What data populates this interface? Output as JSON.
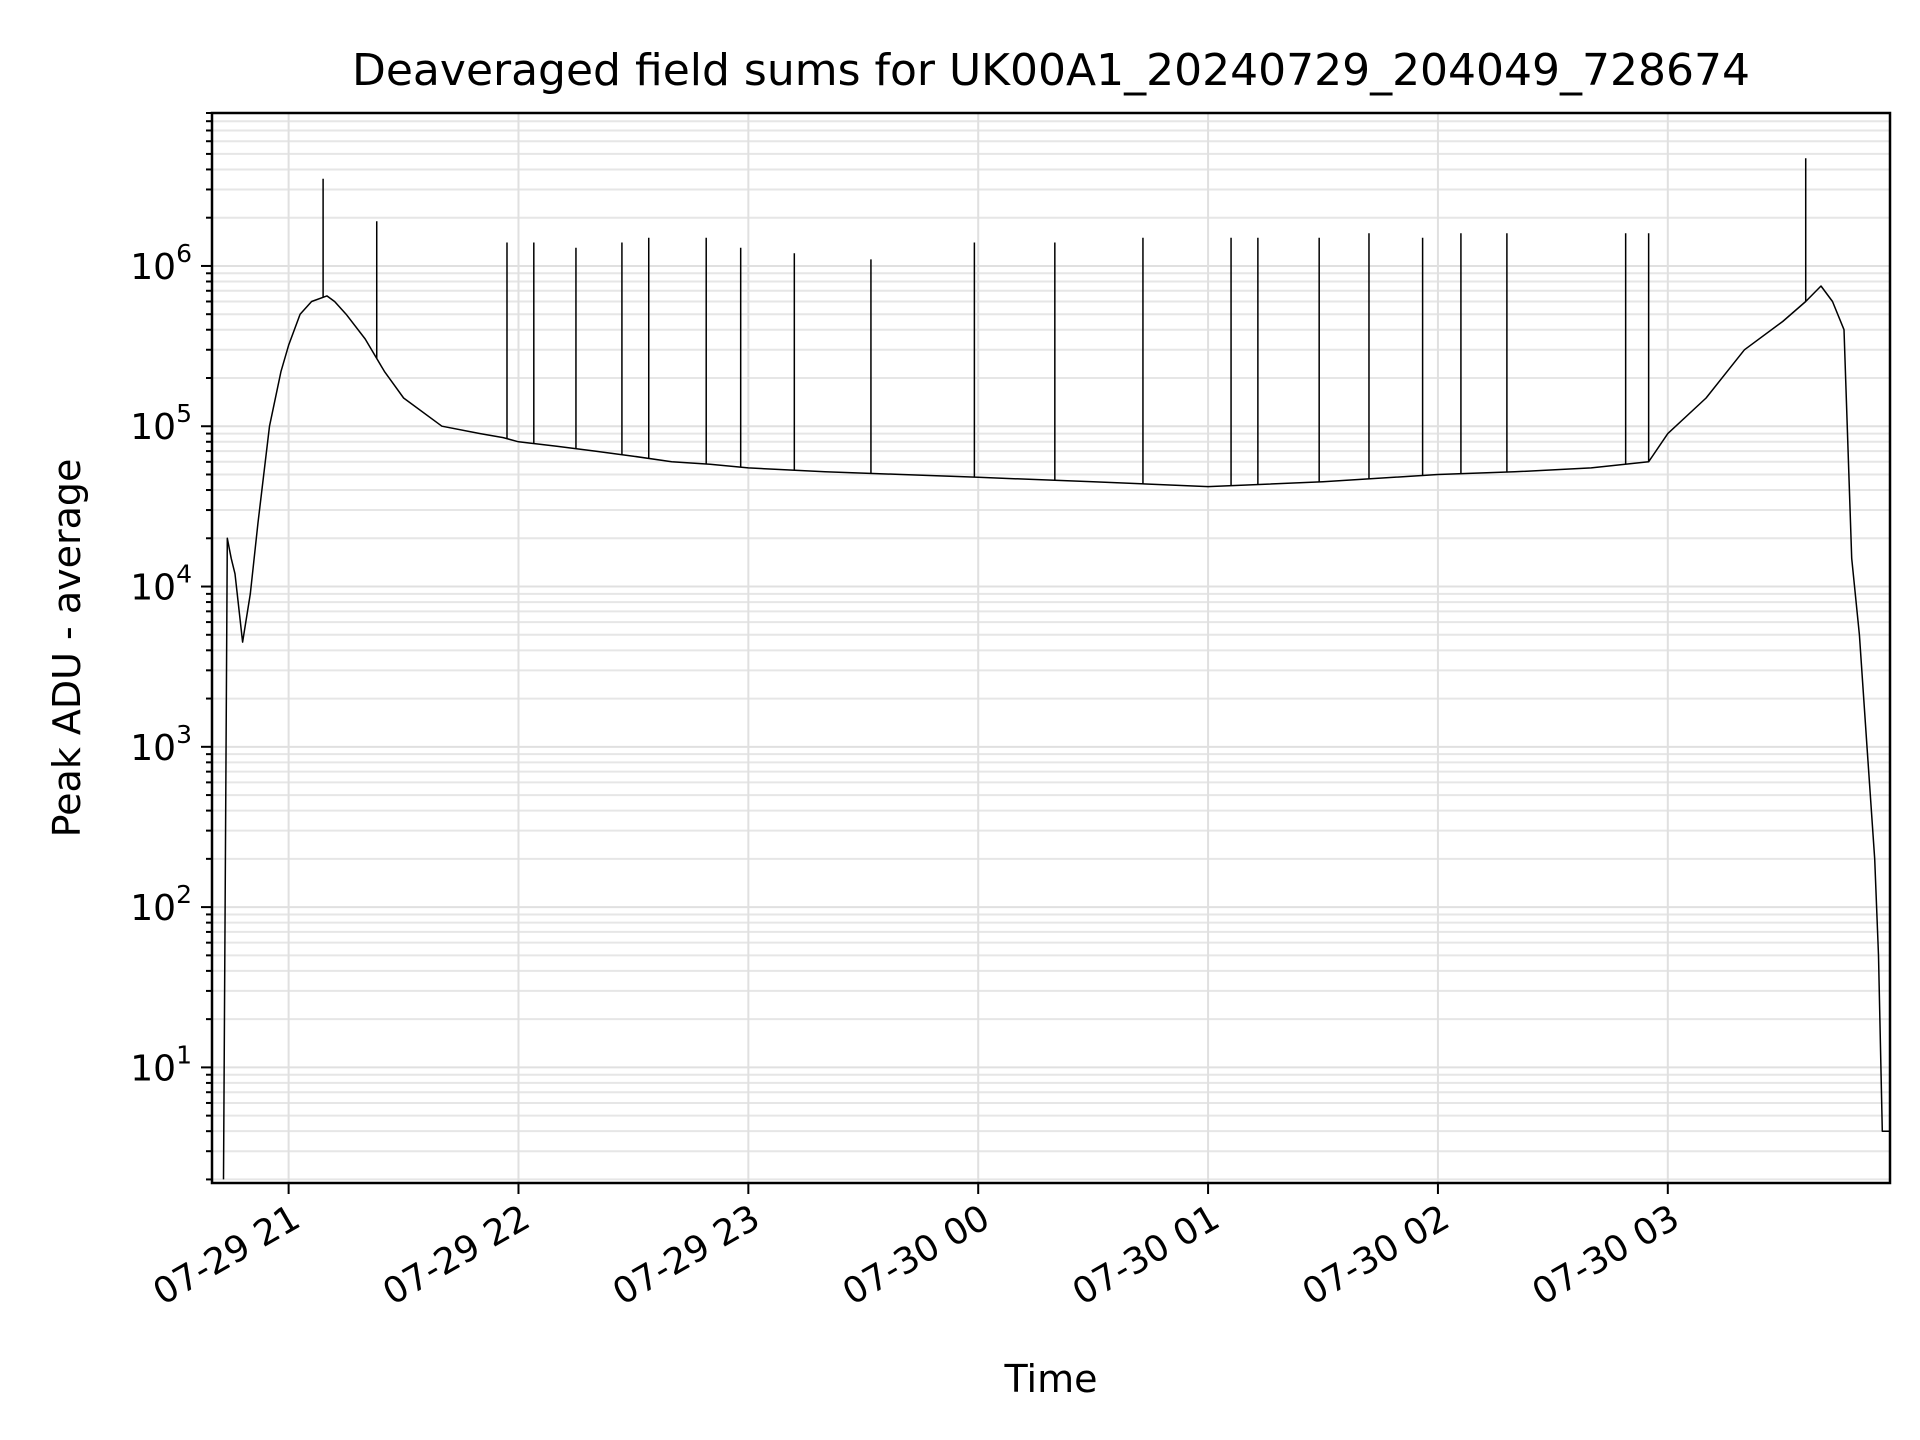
{
  "chart_data": {
    "type": "line",
    "title": "Deaveraged field sums for UK00A1_20240729_204049_728674",
    "xlabel": "Time",
    "ylabel": "Peak ADU - average",
    "yscale": "log",
    "grid": "on (major and minor)",
    "legend": "none",
    "xlim": [
      "2024-07-29 20:40",
      "2024-07-30 03:58"
    ],
    "ylim": [
      1.9,
      9000000
    ],
    "x_ticks": [
      "07-29 21",
      "07-29 22",
      "07-29 23",
      "07-30 00",
      "07-30 01",
      "07-30 02",
      "07-30 03"
    ],
    "y_ticks": [
      {
        "base": "10",
        "exp": "1"
      },
      {
        "base": "10",
        "exp": "2"
      },
      {
        "base": "10",
        "exp": "3"
      },
      {
        "base": "10",
        "exp": "4"
      },
      {
        "base": "10",
        "exp": "5"
      },
      {
        "base": "10",
        "exp": "6"
      }
    ],
    "series": [
      {
        "color": "#000000",
        "x": [
          "2024-07-29 20:43",
          "2024-07-29 20:44",
          "2024-07-29 20:45",
          "2024-07-29 20:46",
          "2024-07-29 20:48",
          "2024-07-29 20:50",
          "2024-07-29 20:52",
          "2024-07-29 20:55",
          "2024-07-29 20:58",
          "2024-07-29 21:00",
          "2024-07-29 21:03",
          "2024-07-29 21:06",
          "2024-07-29 21:10",
          "2024-07-29 21:12",
          "2024-07-29 21:15",
          "2024-07-29 21:20",
          "2024-07-29 21:25",
          "2024-07-29 21:30",
          "2024-07-29 21:40",
          "2024-07-29 21:50",
          "2024-07-29 21:56",
          "2024-07-29 22:00",
          "2024-07-29 22:10",
          "2024-07-29 22:20",
          "2024-07-29 22:30",
          "2024-07-29 22:40",
          "2024-07-29 22:50",
          "2024-07-29 23:00",
          "2024-07-29 23:20",
          "2024-07-29 23:40",
          "2024-07-30 00:00",
          "2024-07-30 00:30",
          "2024-07-30 01:00",
          "2024-07-30 01:30",
          "2024-07-30 02:00",
          "2024-07-30 02:20",
          "2024-07-30 02:40",
          "2024-07-30 02:55",
          "2024-07-30 03:00",
          "2024-07-30 03:10",
          "2024-07-30 03:20",
          "2024-07-30 03:30",
          "2024-07-30 03:36",
          "2024-07-30 03:40",
          "2024-07-30 03:43",
          "2024-07-30 03:46",
          "2024-07-30 03:48",
          "2024-07-30 03:50",
          "2024-07-30 03:52",
          "2024-07-30 03:54",
          "2024-07-30 03:55",
          "2024-07-30 03:56",
          "2024-07-30 03:58"
        ],
        "y": [
          2,
          20000,
          15000,
          12000,
          4500,
          9000,
          25000,
          100000,
          220000,
          320000,
          500000,
          600000,
          650000,
          600000,
          500000,
          350000,
          220000,
          150000,
          100000,
          90000,
          85000,
          80000,
          75000,
          70000,
          65000,
          60000,
          58000,
          55000,
          52000,
          50000,
          48000,
          45000,
          42000,
          45000,
          50000,
          52000,
          55000,
          60000,
          90000,
          150000,
          300000,
          450000,
          600000,
          750000,
          600000,
          400000,
          15000,
          5000,
          1000,
          200,
          50,
          4,
          4
        ]
      }
    ],
    "spikes": {
      "x": [
        "2024-07-29 21:09",
        "2024-07-29 21:23",
        "2024-07-29 21:57",
        "2024-07-29 22:04",
        "2024-07-29 22:15",
        "2024-07-29 22:27",
        "2024-07-29 22:34",
        "2024-07-29 22:49",
        "2024-07-29 22:58",
        "2024-07-29 23:12",
        "2024-07-29 23:32",
        "2024-07-29 23:59",
        "2024-07-30 00:20",
        "2024-07-30 00:43",
        "2024-07-30 01:06",
        "2024-07-30 01:13",
        "2024-07-30 01:29",
        "2024-07-30 01:42",
        "2024-07-30 01:56",
        "2024-07-30 02:06",
        "2024-07-30 02:18",
        "2024-07-30 02:49",
        "2024-07-30 02:55",
        "2024-07-30 03:36"
      ],
      "y": [
        3500000,
        1900000,
        1400000,
        1400000,
        1300000,
        1400000,
        1500000,
        1500000,
        1300000,
        1200000,
        1100000,
        1400000,
        1400000,
        1500000,
        1500000,
        1500000,
        1500000,
        1600000,
        1500000,
        1600000,
        1600000,
        1600000,
        1600000,
        4700000
      ]
    }
  }
}
